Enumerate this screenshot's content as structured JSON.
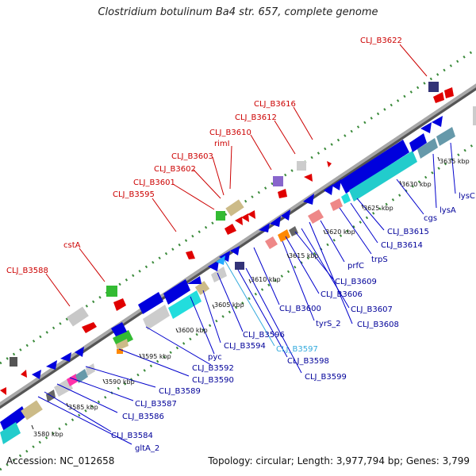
{
  "title": "Clostridium botulinum Ba4 str. 657, complete genome",
  "footer": {
    "accession": "Accession: NC_012658",
    "summary": "Topology: circular; Length: 3,977,794 bp; Genes: 3,799"
  },
  "colors": {
    "forward_label": "#cc0000",
    "reverse_label": "#000099",
    "highlight_label": "#33aadd",
    "backbone": "#9a9a9a",
    "dots": "#3a8a3a"
  },
  "ticks": [
    "3580 kbp",
    "3585 kbp",
    "3590 kbp",
    "3595 kbp",
    "3600 kbp",
    "3605 kbp",
    "3610 kbp",
    "3615 kbp",
    "3620 kbp",
    "3625 kbp",
    "3630 kbp",
    "3635 kbp"
  ],
  "labels_forward": [
    "CLJ_B3588",
    "cstA",
    "CLJ_B3595",
    "CLJ_B3601",
    "CLJ_B3602",
    "CLJ_B3603",
    "rimI",
    "CLJ_B3610",
    "CLJ_B3612",
    "CLJ_B3616",
    "CLJ_B3622"
  ],
  "labels_reverse": [
    "gltA_2",
    "CLJ_B3584",
    "CLJ_B3586",
    "CLJ_B3587",
    "CLJ_B3589",
    "CLJ_B3590",
    "CLJ_B3592",
    "pyc",
    "CLJ_B3594",
    "CLJ_B3596",
    "CLJ_B3597",
    "CLJ_B3598",
    "CLJ_B3599",
    "CLJ_B3600",
    "tyrS_2",
    "CLJ_B3606",
    "CLJ_B3607",
    "CLJ_B3608",
    "CLJ_B3609",
    "prfC",
    "trpS",
    "CLJ_B3614",
    "CLJ_B3615",
    "cgs",
    "lysA",
    "lysC"
  ]
}
